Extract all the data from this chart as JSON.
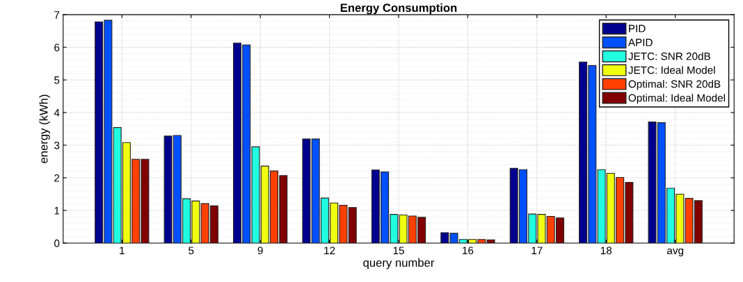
{
  "chart_data": {
    "type": "bar",
    "title": "Energy Consumption",
    "xlabel": "query number",
    "ylabel": "energy (kWh)",
    "categories": [
      "1",
      "5",
      "9",
      "12",
      "15",
      "16",
      "17",
      "18",
      "avg"
    ],
    "series": [
      {
        "name": "PID",
        "color": "#00008f",
        "values": [
          6.78,
          3.28,
          6.13,
          3.19,
          2.24,
          0.32,
          2.29,
          5.55,
          3.71
        ]
      },
      {
        "name": "APID",
        "color": "#0050ff",
        "values": [
          6.83,
          3.3,
          6.07,
          3.19,
          2.18,
          0.3,
          2.25,
          5.44,
          3.69
        ]
      },
      {
        "name": "JETC: SNR 20dB",
        "color": "#20ffe0",
        "values": [
          3.54,
          1.36,
          2.95,
          1.38,
          0.88,
          0.11,
          0.89,
          2.25,
          1.68
        ]
      },
      {
        "name": "JETC: Ideal Model",
        "color": "#f0ff10",
        "values": [
          3.08,
          1.29,
          2.36,
          1.23,
          0.86,
          0.11,
          0.88,
          2.14,
          1.5
        ]
      },
      {
        "name": "Optimal: SNR 20dB",
        "color": "#ff4000",
        "values": [
          2.57,
          1.21,
          2.21,
          1.16,
          0.83,
          0.11,
          0.82,
          2.01,
          1.37
        ]
      },
      {
        "name": "Optimal: Ideal Model",
        "color": "#800000",
        "values": [
          2.57,
          1.14,
          2.07,
          1.09,
          0.79,
          0.1,
          0.77,
          1.86,
          1.3
        ]
      }
    ],
    "ylim": [
      0,
      7
    ],
    "yticks": [
      0,
      1,
      2,
      3,
      4,
      5,
      6,
      7
    ],
    "grid": true,
    "legend": "top right"
  }
}
